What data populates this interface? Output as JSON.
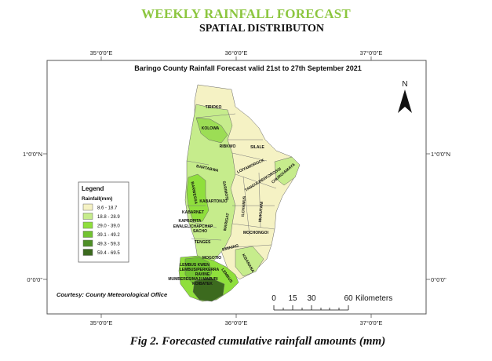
{
  "header": {
    "title": "WEEKLY RAINFALL FORECAST",
    "subtitle": "SPATIAL DISTRIBUTON"
  },
  "map": {
    "title": "Baringo County Rainfall Forecast valid 21st  to 27th September 2021",
    "courtesy": "Courtesy: County Meteorological Office",
    "north_label": "N",
    "coords": {
      "top": [
        "35°0'0\"E",
        "36°0'0\"E",
        "37°0'0\"E"
      ],
      "bottom": [
        "35°0'0\"E",
        "36°0'0\"E",
        "37°0'0\"E"
      ],
      "left": [
        "1°0'0\"N",
        "0°0'0\""
      ],
      "right": [
        "1°0'0\"N",
        "0°0'0\""
      ]
    },
    "scalebar": {
      "ticks": [
        "0",
        "15",
        "30",
        "60"
      ],
      "unit": "Kilometers"
    },
    "legend": {
      "title": "Legend",
      "subtitle": "Rainfall(mm)",
      "items": [
        {
          "label": "8.6 - 18.7",
          "color": "#f5f2c4"
        },
        {
          "label": "18.8 - 28.9",
          "color": "#c6ec8c"
        },
        {
          "label": "29.0 - 39.0",
          "color": "#8fdf3c"
        },
        {
          "label": "39.1 - 49.2",
          "color": "#72c331"
        },
        {
          "label": "49.3 - 59.3",
          "color": "#4e8f27"
        },
        {
          "label": "59.4 - 69.5",
          "color": "#3c6a1e"
        }
      ]
    },
    "wards": [
      "TIRIOKO",
      "KOLOWA",
      "RIBKWO",
      "SILALE",
      "LOIYAMOROCK",
      "BARTABWA",
      "TANGULBEI/KOROSSI",
      "CHURO/AMAYA",
      "BARWESSA",
      "SARIMOSI",
      "ILCHAMUS",
      "MUKUTANI",
      "KABARTONJO",
      "KABARNET",
      "KAPROPITA",
      "EWALEL/CHAPCHAP",
      "SACHO",
      "MARIGAT",
      "MOCHONGOI",
      "TENGES",
      "EMINING",
      "MOGOTIO",
      "LEMBUS KWEN",
      "LEMBUS/PERKERRA",
      "RAVINE",
      "MUMBERES/MAJI MAZURI",
      "KOIBATEK",
      "LEMBUS",
      "KISANANA"
    ]
  }
}
